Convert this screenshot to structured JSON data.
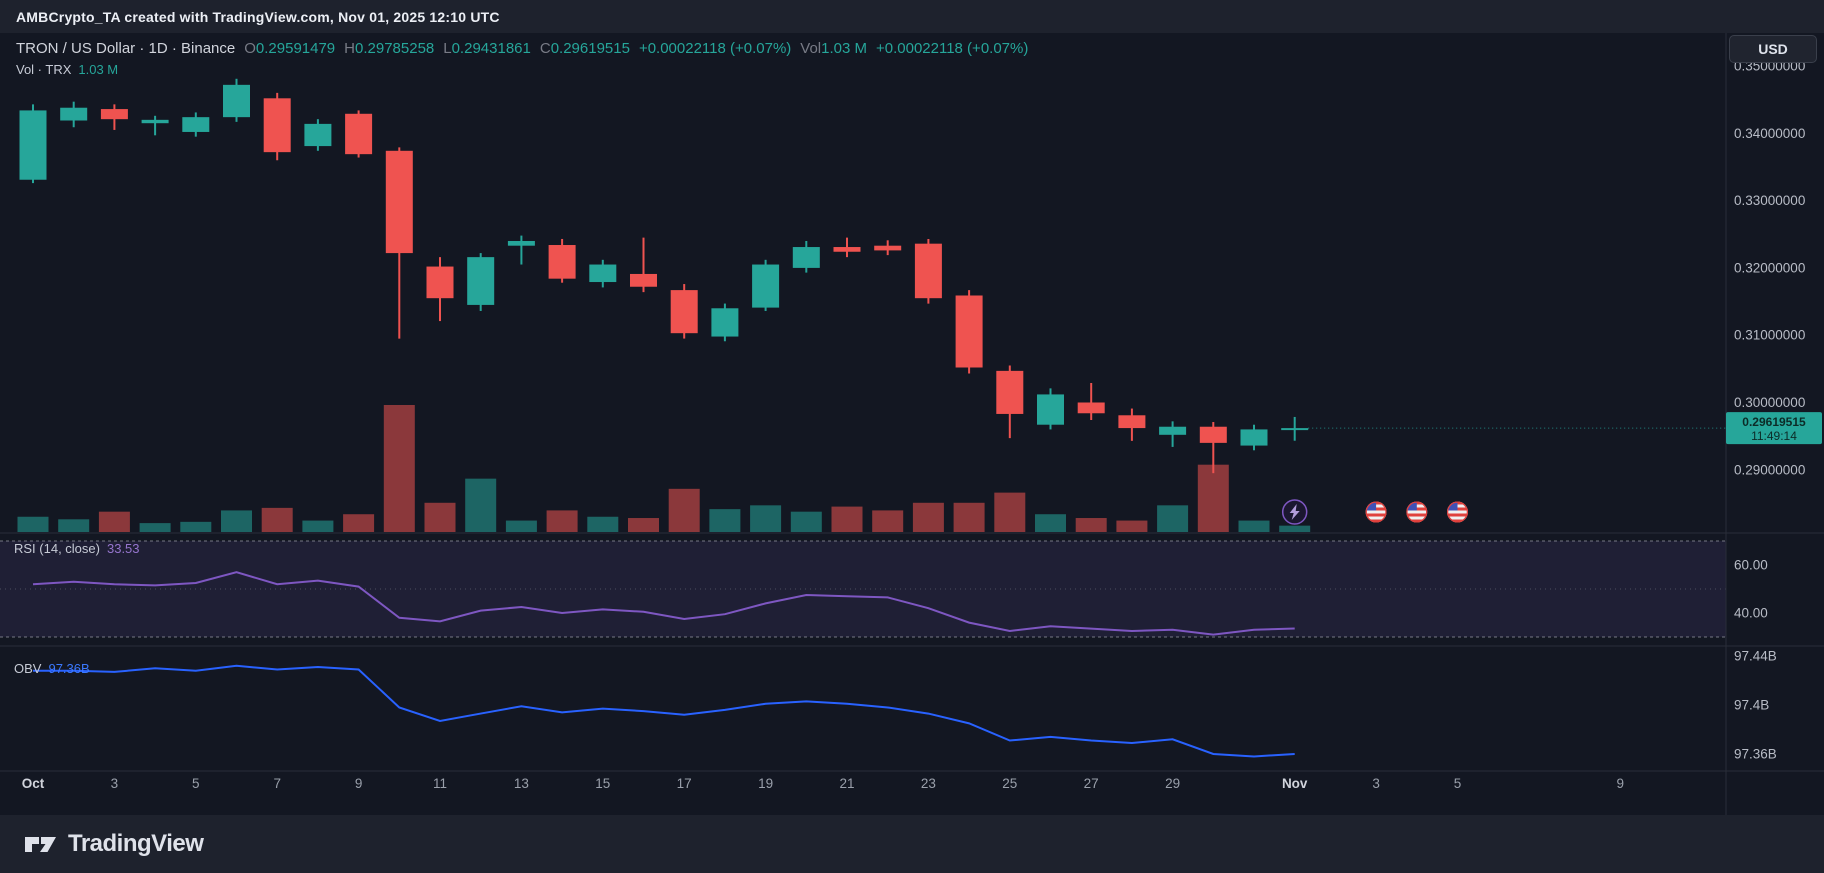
{
  "watermark": "AMBCrypto_TA created with TradingView.com, Nov 01, 2025 12:10 UTC",
  "header": {
    "symbol_line": "TRON / US Dollar · 1D · Binance",
    "ohlc": [
      {
        "label": "O",
        "value": "0.29591479"
      },
      {
        "label": "H",
        "value": "0.29785258"
      },
      {
        "label": "L",
        "value": "0.29431861"
      },
      {
        "label": "C",
        "value": "0.29619515"
      }
    ],
    "change": "+0.00022118 (+0.07%)",
    "vol_label": "Vol",
    "vol_value": "1.03 M",
    "change2": "+0.00022118 (+0.07%)",
    "indicator_line": {
      "name": "Vol · TRX",
      "value": "1.03 M"
    },
    "currency_button": "USD"
  },
  "price_label": {
    "price": "0.29619515",
    "countdown": "11:49:14"
  },
  "rsi_label": {
    "title": "RSI (14, close)",
    "value": "33.53"
  },
  "obv_label": {
    "title": "OBV",
    "value": "97.36B"
  },
  "footer": {
    "brand": "TradingView"
  },
  "icons": {
    "lightning": "lightning-bolt-icon",
    "event_flag": "us-flag-event-icon",
    "event_flag_count": 3
  },
  "colors": {
    "background": "#131722",
    "panel": "#1e222d",
    "up": "#26a69a",
    "down": "#ef5350",
    "volume_up": "rgba(38,166,154,0.55)",
    "volume_down": "rgba(239,83,80,0.55)",
    "rsi": "#7e57c2",
    "rsi_band_fill": "rgba(126,87,194,0.12)",
    "rsi_band_line": "#9598a1",
    "obv": "#2962ff",
    "grid": "#2a2e39",
    "axis_text": "#b8bcc6",
    "time_text": "#9aa0ab",
    "time_text_strong": "#d1d4dc",
    "badge_text": "#0c2b27"
  },
  "chart_data": {
    "type": "candlestick",
    "title": "TRON / US Dollar · 1D · Binance",
    "timeframe": "1D",
    "exchange": "Binance",
    "last_price": 0.29619515,
    "price_range": [
      0.281,
      0.355
    ],
    "dates": [
      "Oct 1",
      "Oct 2",
      "Oct 3",
      "Oct 4",
      "Oct 5",
      "Oct 6",
      "Oct 7",
      "Oct 8",
      "Oct 9",
      "Oct 10",
      "Oct 11",
      "Oct 12",
      "Oct 13",
      "Oct 14",
      "Oct 15",
      "Oct 16",
      "Oct 17",
      "Oct 18",
      "Oct 19",
      "Oct 20",
      "Oct 21",
      "Oct 22",
      "Oct 23",
      "Oct 24",
      "Oct 25",
      "Oct 26",
      "Oct 27",
      "Oct 28",
      "Oct 29",
      "Oct 30",
      "Oct 31",
      "Nov 1"
    ],
    "open": [
      0.3331,
      0.3419,
      0.3436,
      0.3415,
      0.3402,
      0.3424,
      0.3452,
      0.3381,
      0.3429,
      0.3374,
      0.3202,
      0.3145,
      0.3233,
      0.3234,
      0.3179,
      0.3191,
      0.3167,
      0.3098,
      0.3141,
      0.32,
      0.3231,
      0.3233,
      0.3236,
      0.3159,
      0.3047,
      0.2967,
      0.3,
      0.2981,
      0.2952,
      0.2964,
      0.2936,
      0.29591479
    ],
    "high": [
      0.3443,
      0.3447,
      0.3443,
      0.3426,
      0.3431,
      0.3481,
      0.346,
      0.3421,
      0.3434,
      0.3379,
      0.3216,
      0.3222,
      0.3248,
      0.3243,
      0.3212,
      0.3245,
      0.3176,
      0.3147,
      0.3212,
      0.324,
      0.3245,
      0.3241,
      0.3243,
      0.3167,
      0.3055,
      0.3021,
      0.3029,
      0.2991,
      0.2972,
      0.2971,
      0.2967,
      0.29785258
    ],
    "low": [
      0.3326,
      0.3409,
      0.3405,
      0.3397,
      0.3395,
      0.3417,
      0.336,
      0.3374,
      0.3364,
      0.3095,
      0.3121,
      0.3136,
      0.3205,
      0.3178,
      0.3171,
      0.3164,
      0.3095,
      0.3091,
      0.3136,
      0.3193,
      0.3216,
      0.3219,
      0.3147,
      0.3043,
      0.2947,
      0.296,
      0.2974,
      0.2943,
      0.2934,
      0.2895,
      0.2929,
      0.29431861
    ],
    "close": [
      0.3434,
      0.3438,
      0.3421,
      0.342,
      0.3424,
      0.3472,
      0.3372,
      0.3414,
      0.3369,
      0.3222,
      0.3155,
      0.3216,
      0.324,
      0.3184,
      0.3205,
      0.3172,
      0.3103,
      0.314,
      0.3205,
      0.3231,
      0.3224,
      0.3226,
      0.3155,
      0.3052,
      0.2983,
      0.3012,
      0.2984,
      0.2962,
      0.2964,
      0.294,
      0.296,
      0.29619515
    ],
    "volume_rel": [
      0.12,
      0.1,
      0.16,
      0.07,
      0.08,
      0.17,
      0.19,
      0.09,
      0.14,
      1.0,
      0.23,
      0.42,
      0.09,
      0.17,
      0.12,
      0.11,
      0.34,
      0.18,
      0.21,
      0.16,
      0.2,
      0.17,
      0.23,
      0.23,
      0.31,
      0.14,
      0.11,
      0.09,
      0.21,
      0.53,
      0.09,
      0.05
    ],
    "price_axis": {
      "tick_values": [
        0.35,
        0.34,
        0.33,
        0.32,
        0.31,
        0.3,
        0.29
      ],
      "tick_labels": [
        "0.35000000",
        "0.34000000",
        "0.33000000",
        "0.32000000",
        "0.31000000",
        "0.30000000",
        "0.29000000"
      ]
    },
    "time_ticks": [
      {
        "i": 0,
        "label": "Oct",
        "strong": true
      },
      {
        "i": 2,
        "label": "3"
      },
      {
        "i": 4,
        "label": "5"
      },
      {
        "i": 6,
        "label": "7"
      },
      {
        "i": 8,
        "label": "9"
      },
      {
        "i": 10,
        "label": "11"
      },
      {
        "i": 12,
        "label": "13"
      },
      {
        "i": 14,
        "label": "15"
      },
      {
        "i": 16,
        "label": "17"
      },
      {
        "i": 18,
        "label": "19"
      },
      {
        "i": 20,
        "label": "21"
      },
      {
        "i": 22,
        "label": "23"
      },
      {
        "i": 24,
        "label": "25"
      },
      {
        "i": 26,
        "label": "27"
      },
      {
        "i": 28,
        "label": "29"
      },
      {
        "i": 31,
        "label": "Nov",
        "strong": true
      },
      {
        "i": 33,
        "label": "3"
      },
      {
        "i": 35,
        "label": "5"
      },
      {
        "i": 39,
        "label": "9"
      }
    ],
    "markers": {
      "lightning_index": 31,
      "flag_indices": [
        33,
        34,
        35
      ]
    },
    "indicators": [
      {
        "type": "line",
        "name": "RSI (14, close)",
        "color": "#7e57c2",
        "last_value": 33.53,
        "range": [
          28,
          71
        ],
        "bands": {
          "upper": 70,
          "middle": 50,
          "lower": 30
        },
        "axis_ticks": [
          {
            "value": 60,
            "label": "60.00"
          },
          {
            "value": 40,
            "label": "40.00"
          }
        ],
        "values": [
          52,
          53,
          52,
          51.5,
          52.5,
          57,
          52,
          53.5,
          51,
          38,
          36.5,
          41,
          42.5,
          40,
          41.5,
          40.5,
          37.5,
          39.5,
          44,
          47.5,
          47,
          46.5,
          42,
          36,
          32.5,
          34.5,
          33.5,
          32.5,
          33,
          31,
          33,
          33.53
        ]
      },
      {
        "type": "line",
        "name": "OBV",
        "color": "#2962ff",
        "last_value_label": "97.36B",
        "range": [
          97.346,
          97.446
        ],
        "axis_ticks": [
          {
            "value": 97.44,
            "label": "97.44B"
          },
          {
            "value": 97.4,
            "label": "97.4B"
          },
          {
            "value": 97.36,
            "label": "97.36B"
          }
        ],
        "values": [
          97.428,
          97.428,
          97.427,
          97.43,
          97.428,
          97.432,
          97.429,
          97.431,
          97.429,
          97.398,
          97.387,
          97.393,
          97.399,
          97.394,
          97.397,
          97.395,
          97.392,
          97.396,
          97.401,
          97.403,
          97.401,
          97.398,
          97.393,
          97.385,
          97.371,
          97.374,
          97.371,
          97.369,
          97.372,
          97.36,
          97.358,
          97.36
        ]
      }
    ]
  }
}
